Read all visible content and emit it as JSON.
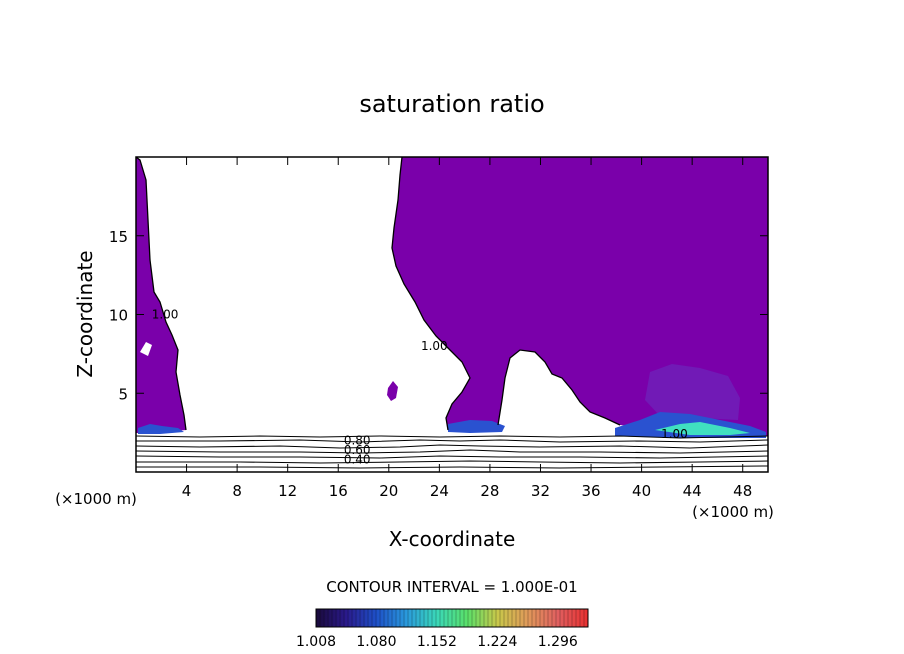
{
  "chart_data": {
    "type": "contour",
    "title": "saturation ratio",
    "xlabel": "X-coordinate",
    "ylabel": "Z-coordinate",
    "x_unit_label": "(×1000 m)",
    "y_unit_label": "(×1000 m)",
    "xlim": [
      0,
      50
    ],
    "ylim": [
      0,
      20
    ],
    "x_ticks": [
      4,
      8,
      12,
      16,
      20,
      24,
      28,
      32,
      36,
      40,
      44,
      48
    ],
    "y_ticks": [
      5,
      10,
      15
    ],
    "contour_labels": [
      {
        "text": "1.00",
        "x": 2.3,
        "z": 10.0
      },
      {
        "text": "1.00",
        "x": 23.6,
        "z": 8.0
      },
      {
        "text": "0.80",
        "x": 17.5,
        "z": 2.0
      },
      {
        "text": "0.60",
        "x": 17.5,
        "z": 1.4
      },
      {
        "text": "0.40",
        "x": 17.5,
        "z": 0.8
      },
      {
        "text": "1.00",
        "x": 42.6,
        "z": 2.4
      }
    ],
    "contour_interval_text": "CONTOUR INTERVAL = 1.000E-01",
    "colorbar": {
      "labels": [
        "1.008",
        "1.080",
        "1.152",
        "1.224",
        "1.296"
      ],
      "min": 1.008,
      "max": 1.332,
      "colors": [
        "#1a0a3a",
        "#2a1a8c",
        "#1e50c8",
        "#2a9adc",
        "#3ad8b8",
        "#5ae06a",
        "#c8c84a",
        "#e09a5a",
        "#e06060",
        "#e83030"
      ]
    },
    "fill_color": "#7a00aa"
  }
}
